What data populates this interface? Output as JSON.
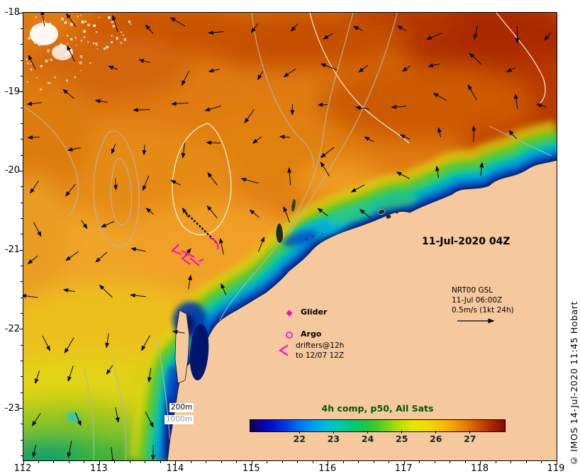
{
  "map": {
    "date_label": "11-Jul-2020 04Z",
    "reference_vector": {
      "line1": "NRT00 GSL",
      "line2": "11-Jul 06:00Z",
      "line3": "0.5m/s (1kt 24h)"
    },
    "legend": {
      "glider_label": "Glider",
      "argo_label": "Argo",
      "drifters_line1": "drifters@12h",
      "drifters_line2": "to 12/07 12Z"
    },
    "contour_labels": {
      "depth200": "200m",
      "depth1000": "1000m"
    }
  },
  "colorbar": {
    "title": "4h comp, p50, All Sats",
    "tick_labels": [
      "22",
      "23",
      "24",
      "25",
      "26",
      "27"
    ]
  },
  "axes": {
    "x_tick_labels": [
      "112",
      "113",
      "114",
      "115",
      "116",
      "117",
      "118",
      "119"
    ],
    "y_tick_labels": [
      "-18",
      "-19",
      "-20",
      "-21",
      "-22",
      "-23"
    ]
  },
  "credit": "© IMOS 14-Jul-2020 11:45 Hobart",
  "colors": {
    "marker_magenta": "#ff00cc",
    "colorbar_title_green": "#005a00",
    "land": "#f5c89e",
    "contour_gray": "#b4b4b4"
  },
  "chart_data": {
    "type": "heatmap",
    "title": "4h comp, p50, All Sats",
    "description": "Sea surface temperature composite map with surface current vectors and coastal upwelling band along the Western Australia shelf",
    "x_axis": {
      "ticks": [
        112,
        113,
        114,
        115,
        116,
        117,
        118,
        119
      ]
    },
    "y_axis": {
      "ticks": [
        -18,
        -19,
        -20,
        -21,
        -22,
        -23
      ]
    },
    "colorbar_ticks": [
      22,
      23,
      24,
      25,
      26,
      27
    ],
    "valid_time": "11-Jul-2020 04Z",
    "vector_reference": "0.5m/s (1kt 24h)",
    "depth_contours": [
      "200m",
      "1000m"
    ],
    "legend_platforms": [
      "Glider",
      "Argo",
      "drifters@12h to 12/07 12Z"
    ]
  }
}
